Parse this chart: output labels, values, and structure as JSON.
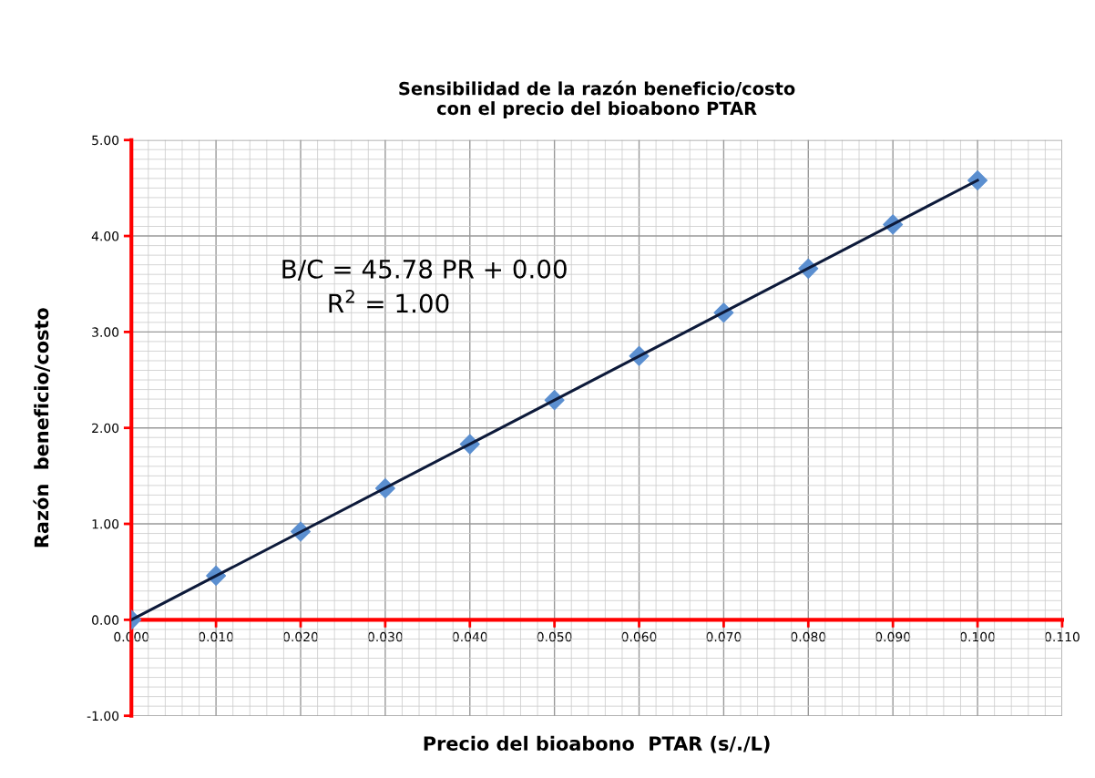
{
  "chart_data": {
    "type": "scatter",
    "title": "Sensibilidad de la razón beneficio/costo\ncon el precio del bioabono PTAR",
    "xlabel": "Precio del bioabono  PTAR (s/./L)",
    "ylabel": "Razón  beneficio/costo",
    "x": [
      0,
      0.01,
      0.02,
      0.03,
      0.04,
      0.05,
      0.06,
      0.07,
      0.08,
      0.09,
      0.1
    ],
    "series": [
      {
        "color": "#5b8fd0",
        "marker": "diamond",
        "values": [
          0,
          0.46,
          0.92,
          1.37,
          1.83,
          2.29,
          2.75,
          3.2,
          3.66,
          4.12,
          4.58
        ]
      },
      {
        "type": "line",
        "color": "#0d1a3a",
        "marker": "none",
        "line_style": "solid",
        "x": [
          0,
          0.1
        ],
        "values": [
          0,
          4.58
        ]
      }
    ],
    "annotations": [
      {
        "text": "B/C = 45.78 PR + 0.00"
      },
      {
        "text": "R$^{2}$ = 1.00"
      }
    ],
    "xlim": [
      0,
      0.11
    ],
    "ylim": [
      -1,
      5
    ],
    "xticks": [
      {
        "value": 0,
        "label": "0.000"
      },
      {
        "value": 0.01,
        "label": "0.010"
      },
      {
        "value": 0.02,
        "label": "0.020"
      },
      {
        "value": 0.03,
        "label": "0.030"
      },
      {
        "value": 0.04,
        "label": "0.040"
      },
      {
        "value": 0.05,
        "label": "0.050"
      },
      {
        "value": 0.06,
        "label": "0.060"
      },
      {
        "value": 0.07,
        "label": "0.070"
      },
      {
        "value": 0.08,
        "label": "0.080"
      },
      {
        "value": 0.09,
        "label": "0.090"
      },
      {
        "value": 0.1,
        "label": "0.100"
      },
      {
        "value": 0.11,
        "label": "0.110"
      }
    ],
    "yticks": [
      {
        "value": -1,
        "label": "-1.00"
      },
      {
        "value": 0,
        "label": "0.00"
      },
      {
        "value": 1,
        "label": "1.00"
      },
      {
        "value": 2,
        "label": "2.00"
      },
      {
        "value": 3,
        "label": "3.00"
      },
      {
        "value": 4,
        "label": "4.00"
      },
      {
        "value": 5,
        "label": "5.00"
      }
    ],
    "grid": true,
    "legend": false
  }
}
